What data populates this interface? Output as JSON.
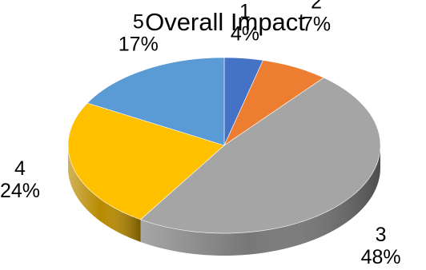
{
  "chart_data": {
    "type": "pie",
    "title": "Overall Impact",
    "labels": [
      "1",
      "2",
      "3",
      "4",
      "5"
    ],
    "values": [
      4,
      7,
      48,
      24,
      17
    ],
    "value_labels": [
      "4%",
      "7%",
      "48%",
      "24%",
      "17%"
    ],
    "colors": [
      "#4472c4",
      "#ed7d31",
      "#a5a5a5",
      "#ffc000",
      "#5b9bd5"
    ],
    "style": "3d",
    "legend": "none"
  }
}
